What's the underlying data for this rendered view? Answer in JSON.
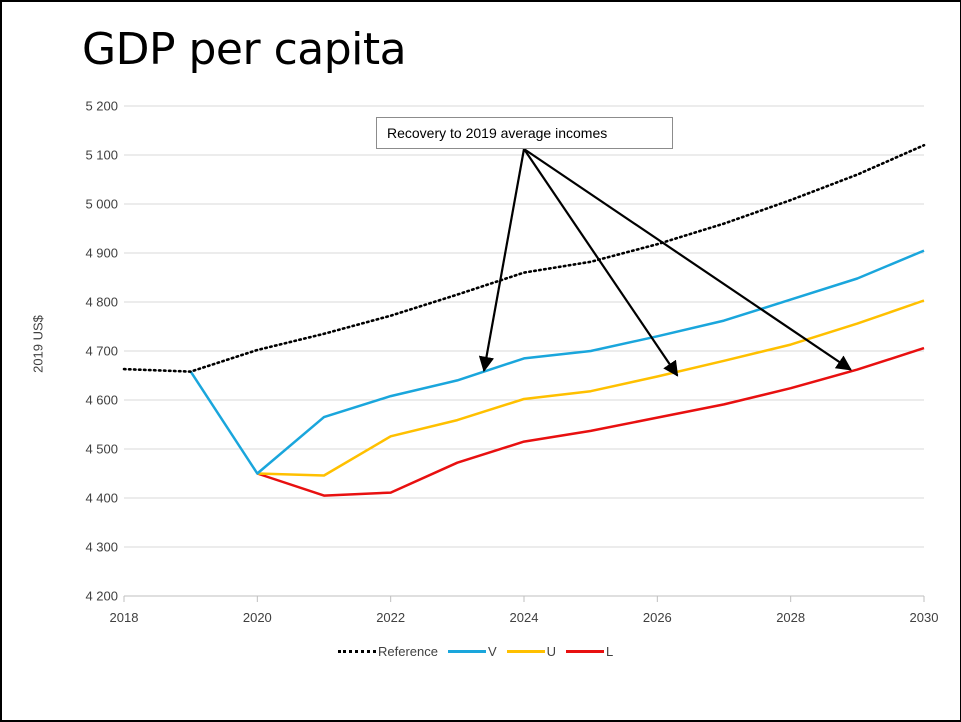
{
  "slide": {
    "title": "GDP per capita"
  },
  "callout": {
    "text": "Recovery to 2019 average incomes"
  },
  "chart_data": {
    "type": "line",
    "title": "",
    "xlabel": "",
    "ylabel": "2019 US$",
    "xlim": [
      2018,
      2030
    ],
    "ylim": [
      4200,
      5200
    ],
    "x_ticks": [
      "2018",
      "2020",
      "2022",
      "2024",
      "2026",
      "2028",
      "2030"
    ],
    "x_tick_values": [
      2018,
      2020,
      2022,
      2024,
      2026,
      2028,
      2030
    ],
    "y_ticks": [
      "4 200",
      "4 300",
      "4 400",
      "4 500",
      "4 600",
      "4 700",
      "4 800",
      "4 900",
      "5 000",
      "5 100",
      "5 200"
    ],
    "y_tick_values": [
      4200,
      4300,
      4400,
      4500,
      4600,
      4700,
      4800,
      4900,
      5000,
      5100,
      5200
    ],
    "grid": "horizontal",
    "legend_position": "bottom",
    "series": [
      {
        "name": "Reference",
        "color": "#000000",
        "style": "dotted",
        "x": [
          2018,
          2019,
          2020,
          2021,
          2022,
          2023,
          2024,
          2025,
          2026,
          2027,
          2028,
          2029,
          2030
        ],
        "values": [
          4663,
          4658,
          4702,
          4735,
          4772,
          4815,
          4860,
          4882,
          4918,
          4960,
          5008,
          5060,
          5120
        ]
      },
      {
        "name": "V",
        "color": "#1aa6dc",
        "style": "solid",
        "x": [
          2019,
          2020,
          2021,
          2022,
          2023,
          2024,
          2025,
          2026,
          2027,
          2028,
          2029,
          2030
        ],
        "values": [
          4658,
          4450,
          4565,
          4608,
          4640,
          4685,
          4700,
          4730,
          4762,
          4805,
          4848,
          4905
        ]
      },
      {
        "name": "U",
        "color": "#ffc000",
        "style": "solid",
        "x": [
          2020,
          2021,
          2022,
          2023,
          2024,
          2025,
          2026,
          2027,
          2028,
          2029,
          2030
        ],
        "values": [
          4450,
          4446,
          4526,
          4559,
          4602,
          4618,
          4648,
          4680,
          4713,
          4756,
          4803
        ]
      },
      {
        "name": "L",
        "color": "#e81010",
        "style": "solid",
        "x": [
          2020,
          2021,
          2022,
          2023,
          2024,
          2025,
          2026,
          2027,
          2028,
          2029,
          2030
        ],
        "values": [
          4450,
          4405,
          4411,
          4472,
          4515,
          4537,
          4564,
          4591,
          4624,
          4662,
          4706
        ]
      }
    ],
    "annotations": [
      {
        "text": "Recovery to 2019 average incomes",
        "arrows_to": [
          [
            2023.4,
            4660
          ],
          [
            2026.3,
            4650
          ],
          [
            2028.9,
            4662
          ]
        ]
      }
    ]
  }
}
